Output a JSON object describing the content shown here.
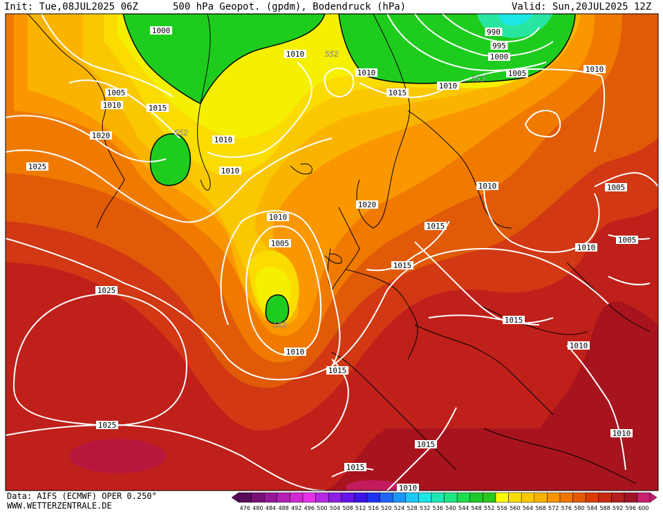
{
  "header": {
    "init": "Init: Tue,08JUL2025 06Z",
    "title": "500 hPa Geopot. (gpdm), Bodendruck (hPa)",
    "valid": "Valid: Sun,20JUL2025 12Z"
  },
  "footer": {
    "data_source": "Data: AIFS (ECMWF) OPER 0.250°",
    "website": "WWW.WETTERZENTRALE.DE"
  },
  "legend": {
    "values": [
      "476",
      "480",
      "484",
      "488",
      "492",
      "496",
      "500",
      "504",
      "508",
      "512",
      "516",
      "520",
      "524",
      "528",
      "532",
      "536",
      "540",
      "544",
      "548",
      "552",
      "556",
      "560",
      "564",
      "568",
      "572",
      "576",
      "580",
      "584",
      "588",
      "592",
      "596",
      "600"
    ],
    "colors": [
      "#5a0a5a",
      "#781078",
      "#961896",
      "#b420b4",
      "#d228d2",
      "#e632e6",
      "#b428e6",
      "#8c1ee6",
      "#6414e6",
      "#3c14e6",
      "#1e32f0",
      "#1e64f5",
      "#1e96f5",
      "#1ec8f5",
      "#1ee6e6",
      "#1ee6b4",
      "#1ee682",
      "#1edc50",
      "#1ec828",
      "#28c81e",
      "#fafa00",
      "#fadc00",
      "#fac800",
      "#fab400",
      "#fa9600",
      "#f07800",
      "#e65a00",
      "#dc3c00",
      "#c82814",
      "#b41e1e",
      "#a01428",
      "#c81e6e"
    ]
  },
  "map": {
    "pressure_labels": [
      {
        "text": "1000"
      },
      {
        "text": "1005"
      },
      {
        "text": "1010"
      },
      {
        "text": "1015"
      },
      {
        "text": "1020"
      },
      {
        "text": "1025"
      },
      {
        "text": "1010"
      },
      {
        "text": "552"
      },
      {
        "text": "1010"
      },
      {
        "text": "1010"
      },
      {
        "text": "552"
      },
      {
        "text": "1010"
      },
      {
        "text": "1010"
      },
      {
        "text": "1005"
      },
      {
        "text": "552"
      },
      {
        "text": "1010"
      },
      {
        "text": "1015"
      },
      {
        "text": "1025"
      },
      {
        "text": "1025"
      },
      {
        "text": "1020"
      },
      {
        "text": "1015"
      },
      {
        "text": "1015"
      },
      {
        "text": "1010"
      },
      {
        "text": "1015"
      },
      {
        "text": "1010"
      },
      {
        "text": "1015"
      },
      {
        "text": "1015"
      },
      {
        "text": "1005"
      },
      {
        "text": "1005"
      },
      {
        "text": "1010"
      },
      {
        "text": "1010"
      },
      {
        "text": "1010"
      },
      {
        "text": "990"
      },
      {
        "text": "995"
      },
      {
        "text": "1000"
      },
      {
        "text": "1005"
      },
      {
        "text": "1010"
      },
      {
        "text": "552"
      },
      {
        "text": "1015"
      },
      {
        "text": "1010"
      },
      {
        "text": "1015"
      },
      {
        "text": "1010"
      }
    ]
  }
}
